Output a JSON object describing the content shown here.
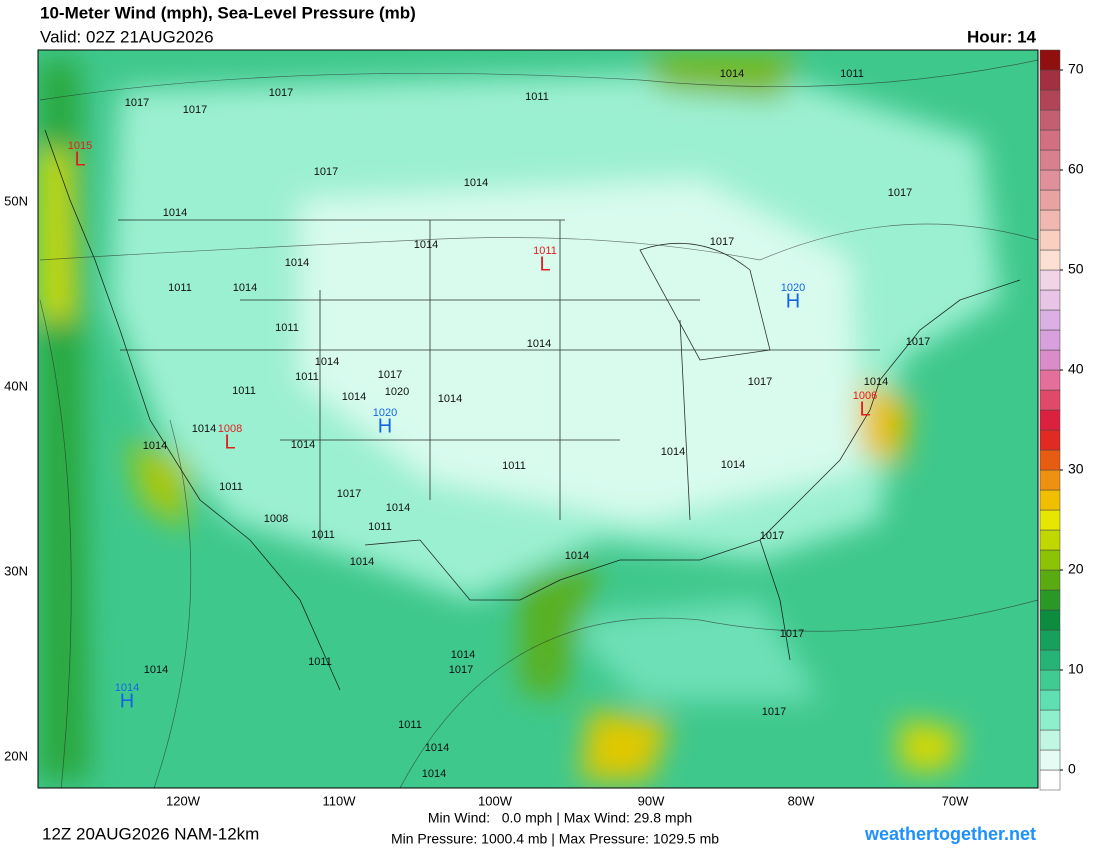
{
  "header": {
    "title": "10-Meter Wind (mph), Sea-Level Pressure (mb)",
    "valid": "Valid: 02Z 21AUG2026",
    "hour": "Hour: 14"
  },
  "map": {
    "lat_labels": [
      "50N",
      "40N",
      "30N",
      "20N"
    ],
    "lon_labels": [
      "120W",
      "110W",
      "100W",
      "90W",
      "80W",
      "70W"
    ],
    "pressure_labels": [
      "1017",
      "1017",
      "1017",
      "1011",
      "1014",
      "1011",
      "1017",
      "1014",
      "1014",
      "1017",
      "1014",
      "1014",
      "1011",
      "1014",
      "1017",
      "1011",
      "1014",
      "1014",
      "1011",
      "1017",
      "1020",
      "1014",
      "1014",
      "1011",
      "1017",
      "1014",
      "1017",
      "1014",
      "1014",
      "1014",
      "1011",
      "1014",
      "1014",
      "1011",
      "1017",
      "1014",
      "1008",
      "1011",
      "1011",
      "1014",
      "1014",
      "1017",
      "1017",
      "1011",
      "1014",
      "1014",
      "1017",
      "1011",
      "1014",
      "1014",
      "1017"
    ],
    "centers": [
      {
        "type": "L",
        "value": "1015"
      },
      {
        "type": "L",
        "value": "1011"
      },
      {
        "type": "H",
        "value": "1020"
      },
      {
        "type": "H",
        "value": "1020"
      },
      {
        "type": "L",
        "value": "1008"
      },
      {
        "type": "L",
        "value": "1006"
      },
      {
        "type": "H",
        "value": "1014"
      }
    ]
  },
  "colorbar": {
    "range": [
      -2,
      72
    ],
    "ticks": [
      0,
      10,
      20,
      30,
      40,
      50,
      60,
      70
    ],
    "colors": [
      "#ffffff",
      "#e6fbf3",
      "#c0f6e2",
      "#8defcc",
      "#5fe0b2",
      "#3fcb92",
      "#25b476",
      "#16a05c",
      "#0c8c3e",
      "#2a9826",
      "#5aab12",
      "#8cc304",
      "#c0d800",
      "#e6e600",
      "#f0c000",
      "#ee9010",
      "#e85c12",
      "#e02a22",
      "#dc2040",
      "#e04a6a",
      "#e46f9a",
      "#d98cc8",
      "#d8a0dc",
      "#dcb0e4",
      "#e8c4e6",
      "#f2d4e8",
      "#fde0d4",
      "#f8cfc0",
      "#f0b8b0",
      "#e8a2a2",
      "#e0909a",
      "#d8808e",
      "#d07080",
      "#c26072",
      "#b24458",
      "#a23040",
      "#901010"
    ]
  },
  "footer": {
    "run": "12Z 20AUG2026 NAM-12km",
    "stats": [
      "Min Wind:   0.0 mph | Max Wind: 29.8 mph",
      "Min Pressure: 1000.4 mb | Max Pressure: 1029.5 mb"
    ],
    "site": "weathertogether.net"
  }
}
